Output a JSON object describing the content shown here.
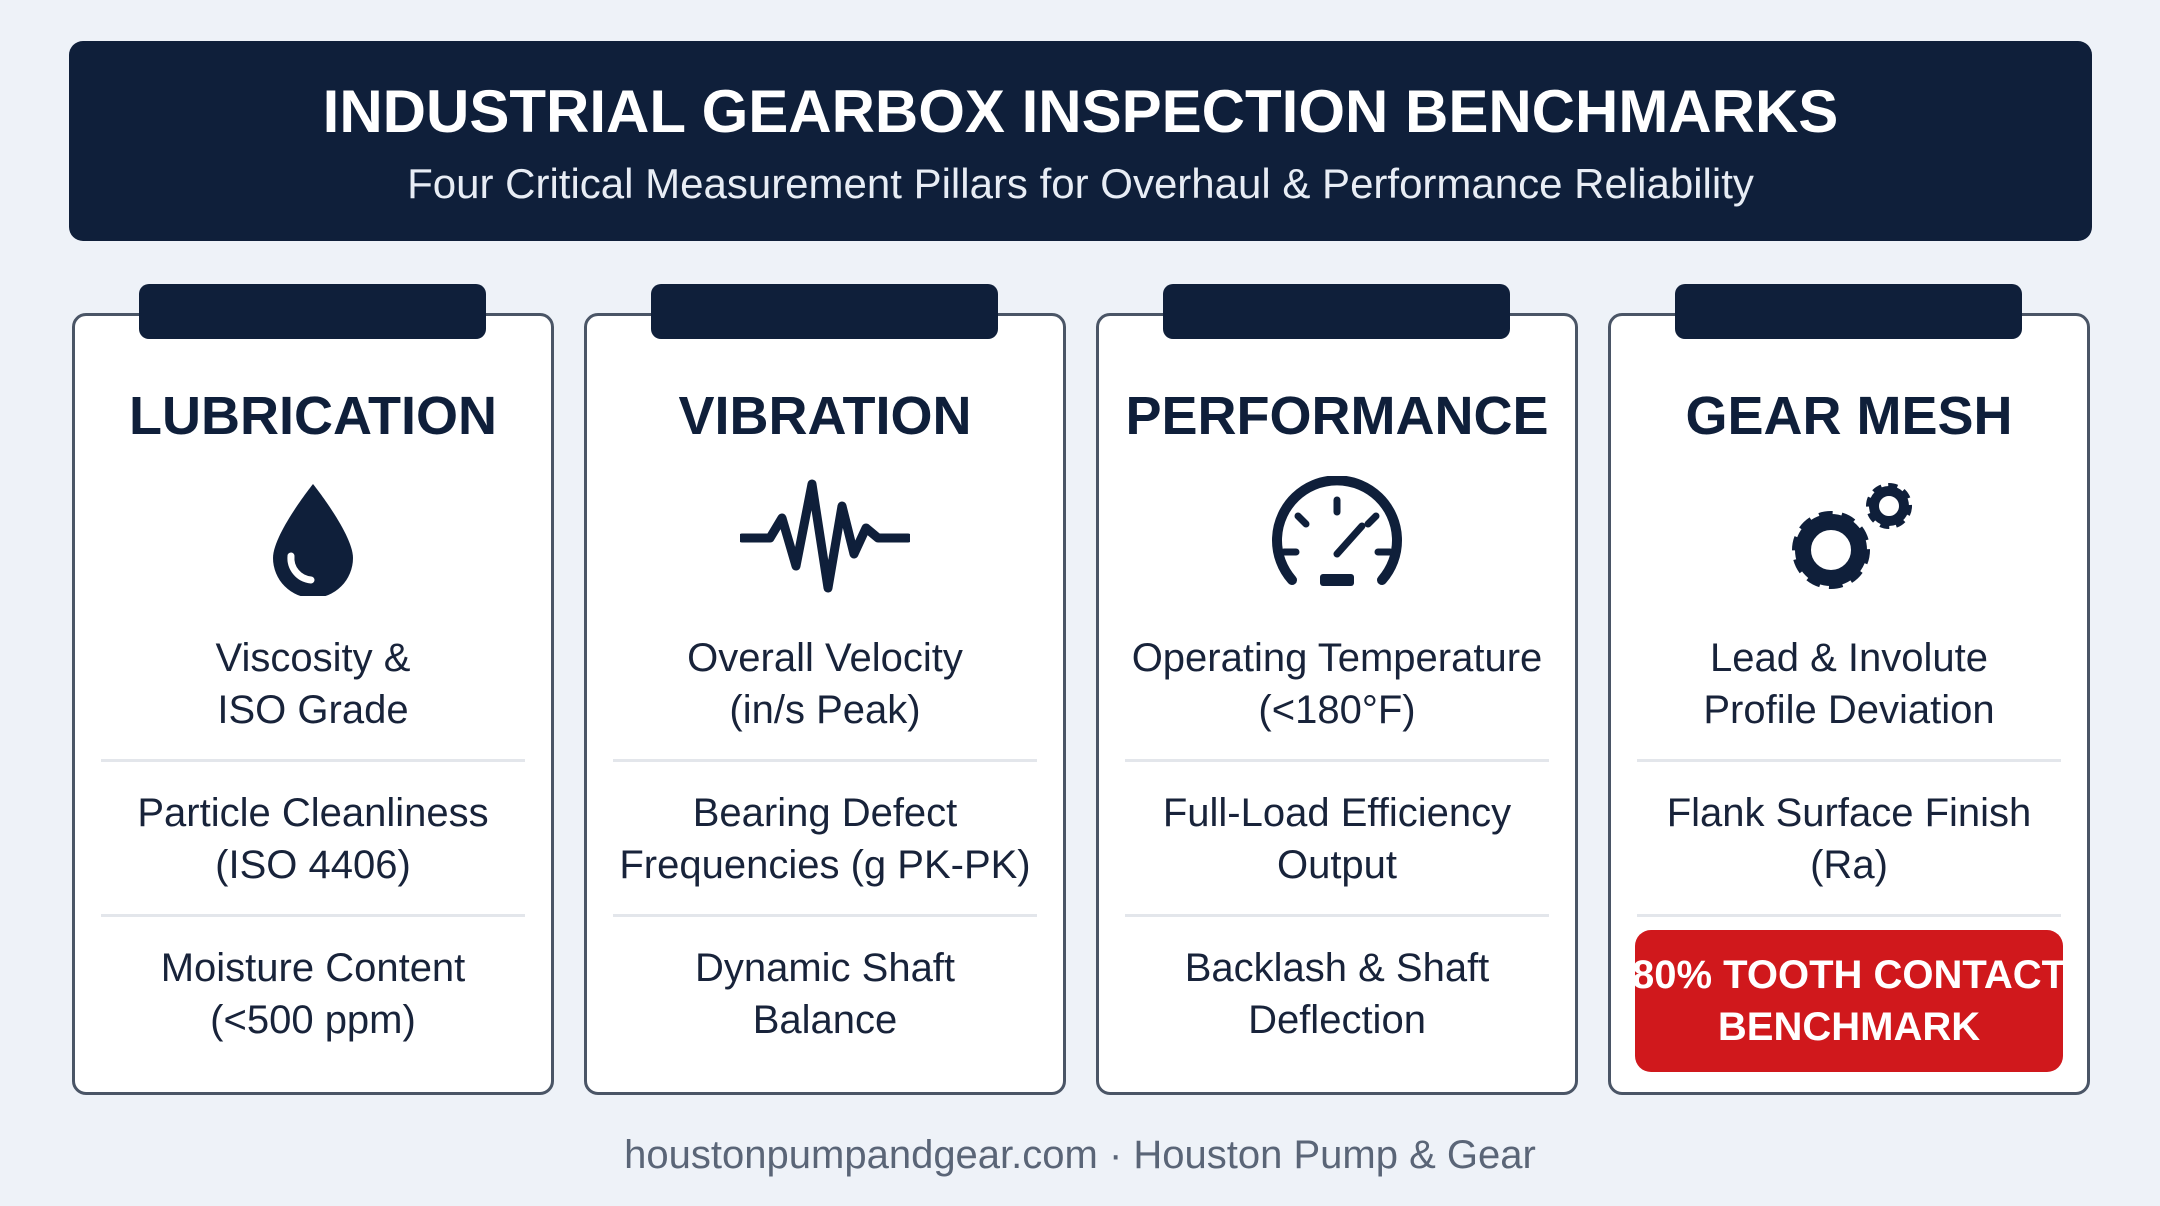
{
  "header": {
    "title": "INDUSTRIAL GEARBOX INSPECTION BENCHMARKS",
    "subtitle": "Four Critical Measurement Pillars for Overhaul & Performance Reliability"
  },
  "cards": [
    {
      "title": "LUBRICATION",
      "items": [
        [
          "Viscosity &",
          "ISO Grade"
        ],
        [
          "Particle Cleanliness",
          "(ISO 4406)"
        ],
        [
          "Moisture Content",
          "(<500 ppm)"
        ]
      ]
    },
    {
      "title": "VIBRATION",
      "items": [
        [
          "Overall Velocity",
          "(in/s Peak)"
        ],
        [
          "Bearing Defect",
          "Frequencies (g PK-PK)"
        ],
        [
          "Dynamic Shaft",
          "Balance"
        ]
      ]
    },
    {
      "title": "PERFORMANCE",
      "items": [
        [
          "Operating Temperature",
          "(<180°F)"
        ],
        [
          "Full-Load Efficiency",
          "Output"
        ],
        [
          "Backlash & Shaft",
          "Deflection"
        ]
      ]
    },
    {
      "title": "GEAR MESH",
      "items": [
        [
          "Lead & Involute",
          "Profile Deviation"
        ],
        [
          "Flank Surface Finish",
          "(Ra)"
        ]
      ],
      "highlight": [
        "80% TOOTH CONTACT",
        "BENCHMARK"
      ]
    }
  ],
  "footer": "houstonpumpandgear.com · Houston Pump & Gear"
}
